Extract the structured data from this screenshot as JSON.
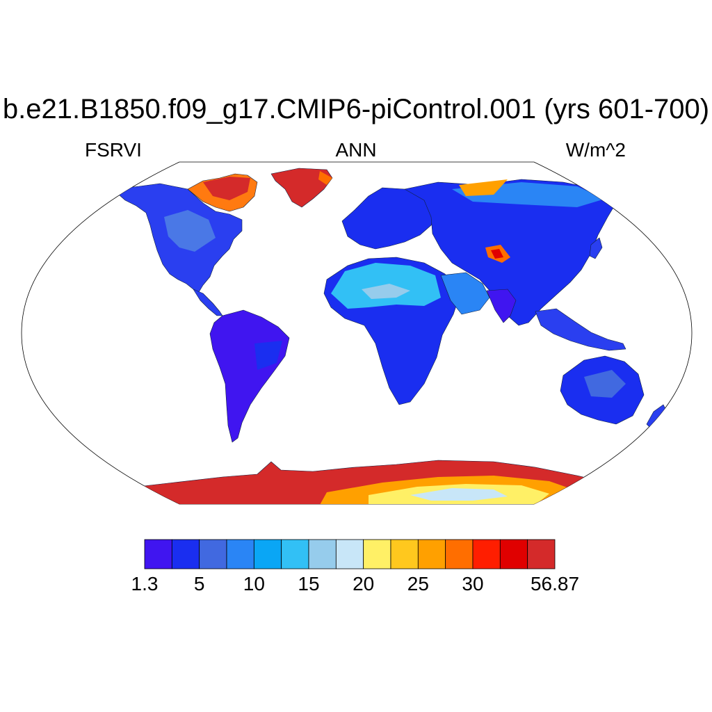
{
  "header": {
    "title": "b.e21.B1850.f09_g17.CMIP6-piControl.001 (yrs 601-700)",
    "variable": "FSRVI",
    "season": "ANN",
    "units": "W/m^2"
  },
  "map": {
    "projection": "Robinson",
    "field": "FSRVI",
    "coastlines": true
  },
  "colorbar": {
    "colors": [
      "#4015f0",
      "#1a2ef0",
      "#4169e0",
      "#2a85f5",
      "#0aa6f5",
      "#32c0f5",
      "#96ccec",
      "#c8e6f8",
      "#fff066",
      "#ffc81e",
      "#ffa000",
      "#ff6e00",
      "#ff1e00",
      "#e00000",
      "#d42a2a"
    ],
    "labels": [
      {
        "text": "1.3",
        "boundary": 0
      },
      {
        "text": "5",
        "boundary": 2
      },
      {
        "text": "10",
        "boundary": 4
      },
      {
        "text": "15",
        "boundary": 6
      },
      {
        "text": "20",
        "boundary": 8
      },
      {
        "text": "25",
        "boundary": 10
      },
      {
        "text": "30",
        "boundary": 12
      },
      {
        "text": "56.87",
        "boundary": 15
      }
    ]
  }
}
